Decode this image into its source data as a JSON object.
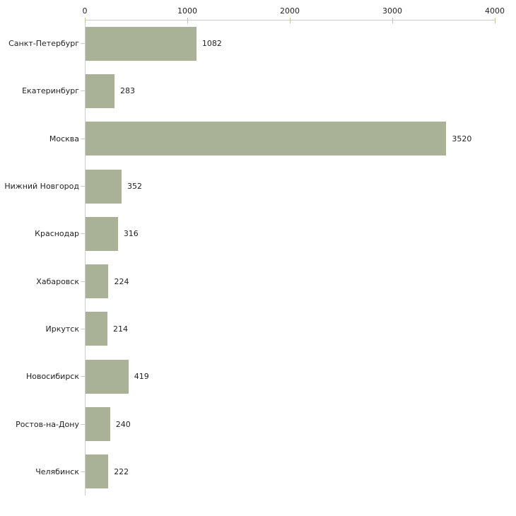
{
  "chart_data": {
    "type": "bar",
    "orientation": "horizontal",
    "title": "",
    "xlabel": "",
    "ylabel": "",
    "grid": false,
    "legend": null,
    "xlim": [
      0,
      4000
    ],
    "x_ticks": [
      0,
      1000,
      2000,
      3000,
      4000
    ],
    "categories": [
      "Санкт-Петербург",
      "Екатеринбург",
      "Москва",
      "Нижний Новгород",
      "Краснодар",
      "Хабаровск",
      "Иркутск",
      "Новосибирск",
      "Ростов-на-Дону",
      "Челябинск"
    ],
    "values": [
      1082,
      283,
      3520,
      352,
      316,
      224,
      214,
      419,
      240,
      222
    ],
    "value_labels": [
      "1082",
      "283",
      "3520",
      "352",
      "316",
      "224",
      "214",
      "419",
      "240",
      "222"
    ],
    "colors": {
      "bar": "#a9b197",
      "axis_line": "#cccccc",
      "x_tick_dash": "#c2c49a",
      "y_tick_dash": "#cccccc",
      "text": "#222222",
      "background": "#ffffff"
    }
  }
}
